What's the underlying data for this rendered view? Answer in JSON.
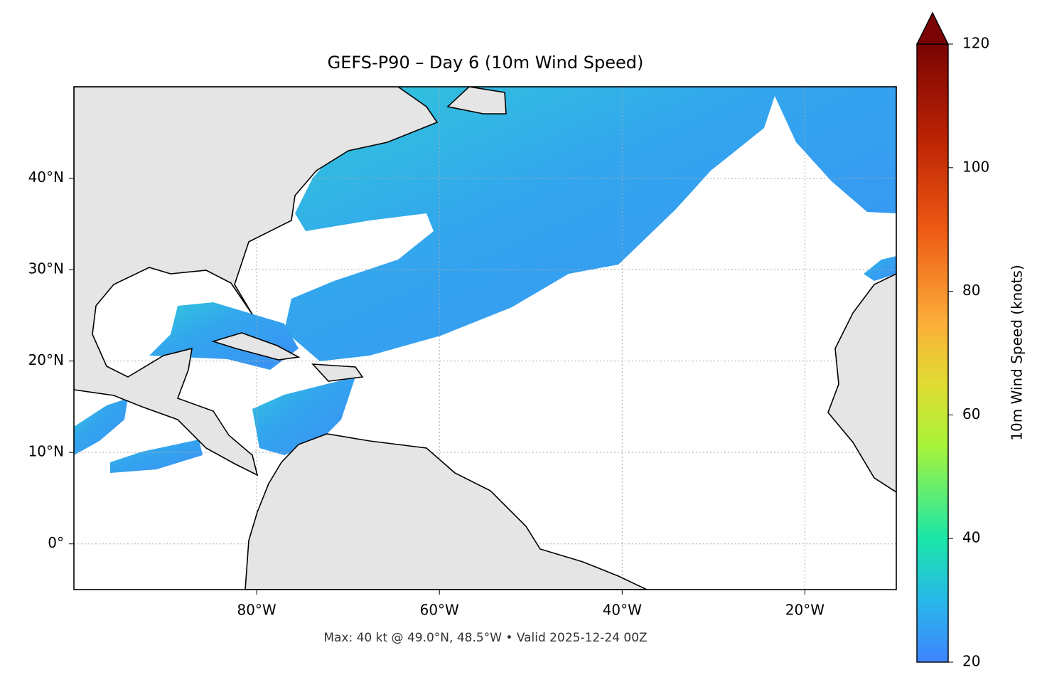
{
  "chart_data": {
    "type": "map",
    "title": "GEFS-P90 – Day 6 (10m Wind Speed)",
    "annotation": "Max: 40 kt @ 49.0°N, 48.5°W • Valid 2025-12-24 00Z",
    "xlim": [
      -100,
      -10
    ],
    "ylim": [
      -5,
      50
    ],
    "xticks": [
      {
        "value": -80,
        "label": "80°W"
      },
      {
        "value": -60,
        "label": "60°W"
      },
      {
        "value": -40,
        "label": "40°W"
      },
      {
        "value": -20,
        "label": "20°W"
      }
    ],
    "yticks": [
      {
        "value": 0,
        "label": "0°"
      },
      {
        "value": 10,
        "label": "10°N"
      },
      {
        "value": 20,
        "label": "20°N"
      },
      {
        "value": 30,
        "label": "30°N"
      },
      {
        "value": 40,
        "label": "40°N"
      }
    ],
    "grid": true,
    "colorbar": {
      "label": "10m Wind Speed (knots)",
      "lim": [
        20,
        120
      ],
      "ticks": [
        20,
        40,
        60,
        80,
        100,
        120
      ],
      "extend": "max"
    }
  }
}
